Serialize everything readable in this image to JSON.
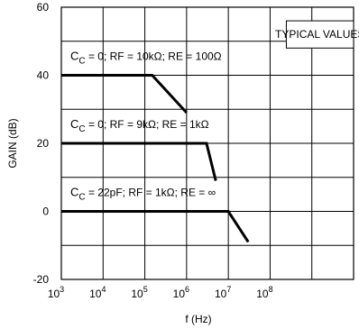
{
  "chart_data": {
    "type": "line",
    "title": "",
    "xlabel": "f (Hz)",
    "ylabel": "GAIN (dB)",
    "x_scale": "log",
    "xlim": [
      1000,
      10000000000
    ],
    "ylim": [
      -20,
      60
    ],
    "x_ticks": [
      1000,
      10000,
      100000,
      1000000,
      10000000,
      100000000
    ],
    "x_tick_labels": [
      {
        "base": "10",
        "exp": "3"
      },
      {
        "base": "10",
        "exp": "4"
      },
      {
        "base": "10",
        "exp": "5"
      },
      {
        "base": "10",
        "exp": "6"
      },
      {
        "base": "10",
        "exp": "7"
      },
      {
        "base": "10",
        "exp": "8"
      }
    ],
    "y_ticks": [
      60,
      40,
      20,
      0,
      -20
    ],
    "y_tick_labels": [
      "60",
      "40",
      "20",
      "0",
      "-20"
    ],
    "grid": true,
    "annotation_box": "TYPICAL VALUES",
    "series": [
      {
        "label_main": "C",
        "label_sub": "C",
        "label_rest": " = 0; RF = 10kΩ; RE = 100Ω",
        "x": [
          1000,
          150000,
          1000000
        ],
        "y": [
          40,
          40,
          29
        ]
      },
      {
        "label_main": "C",
        "label_sub": "C",
        "label_rest": " = 0; RF = 9kΩ; RE = 1kΩ",
        "x": [
          1000,
          3000000,
          5000000
        ],
        "y": [
          20,
          20,
          9
        ]
      },
      {
        "label_main": "C",
        "label_sub": "C",
        "label_rest": " = 22pF; RF = 1kΩ; RE = ∞",
        "x": [
          1000,
          10000000,
          30000000
        ],
        "y": [
          0,
          0,
          -9
        ]
      }
    ],
    "colors": {
      "line": "#000000",
      "grid": "#000000"
    }
  }
}
